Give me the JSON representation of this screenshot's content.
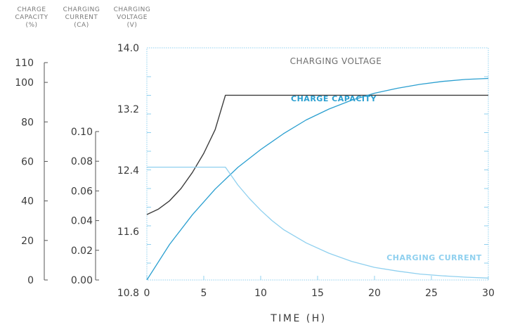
{
  "headers": {
    "capacity": [
      "CHARGE",
      "CAPACITY",
      "(%)"
    ],
    "current": [
      "CHARGING",
      "CURRENT",
      "(CA)"
    ],
    "voltage": [
      "CHARGING",
      "VOLTAGE",
      "(V)"
    ]
  },
  "colors": {
    "voltage": "#3c3c3c",
    "capacity": "#2a9fd0",
    "current": "#8fd0ef",
    "frame": "#8fd0ef",
    "axis": "#555555"
  },
  "chart_data": {
    "type": "line",
    "xlabel": "TIME (H)",
    "x_ticks": [
      0,
      5,
      10,
      15,
      20,
      25,
      30
    ],
    "xlim": [
      0,
      30
    ],
    "axes": {
      "capacity": {
        "ticks": [
          0,
          20,
          40,
          60,
          80,
          100,
          110
        ],
        "lim": [
          0,
          110
        ]
      },
      "current": {
        "ticks": [
          "0.00",
          "0.02",
          "0.04",
          "0.06",
          "0.08",
          "0.10"
        ],
        "lim": [
          0,
          0.1
        ]
      },
      "voltage": {
        "ticks": [
          "10.8",
          "11.6",
          "12.4",
          "13.2",
          "14.0"
        ],
        "lim": [
          10.5,
          14.0
        ]
      }
    },
    "series": [
      {
        "name": "CHARGING VOLTAGE",
        "axis": "voltage",
        "x": [
          0,
          1,
          2,
          3,
          4,
          5,
          6,
          6.9,
          10,
          15,
          20,
          25,
          30
        ],
        "y": [
          11.82,
          11.89,
          12.0,
          12.16,
          12.37,
          12.62,
          12.93,
          13.38,
          13.38,
          13.38,
          13.38,
          13.38,
          13.38
        ]
      },
      {
        "name": "CHARGE CAPACITY",
        "axis": "capacity",
        "x": [
          0,
          2,
          4,
          6,
          8,
          10,
          12,
          14,
          16,
          18,
          20,
          22,
          24,
          26,
          28,
          30
        ],
        "y": [
          0,
          18,
          33,
          46,
          57,
          66,
          74,
          81,
          86.5,
          91,
          94.5,
          97,
          99,
          100.5,
          101.5,
          102
        ]
      },
      {
        "name": "CHARGING CURRENT",
        "axis": "current",
        "x": [
          0,
          6.9,
          8,
          9,
          10,
          11,
          12,
          14,
          16,
          18,
          20,
          22,
          24,
          26,
          28,
          30
        ],
        "y": [
          0.076,
          0.076,
          0.064,
          0.055,
          0.047,
          0.04,
          0.034,
          0.025,
          0.018,
          0.0125,
          0.0085,
          0.006,
          0.004,
          0.0028,
          0.0019,
          0.0013
        ]
      }
    ]
  }
}
